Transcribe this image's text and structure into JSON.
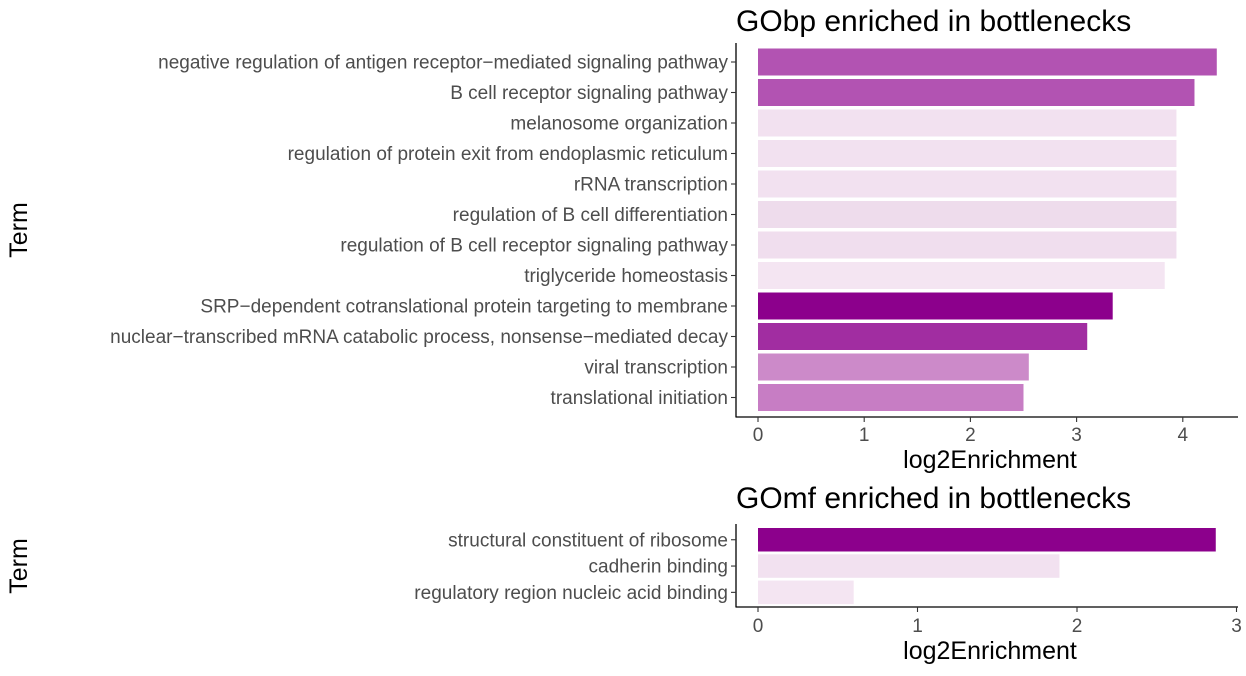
{
  "chart_data": [
    {
      "type": "bar",
      "orientation": "horizontal",
      "title": "GObp enriched in bottlenecks",
      "xlabel": "log2Enrichment",
      "ylabel": "Term",
      "xlim": [
        0,
        4.5
      ],
      "xticks": [
        0,
        1,
        2,
        3,
        4
      ],
      "grid": false,
      "legend": "none",
      "categories": [
        "negative regulation of antigen receptor−mediated signaling pathway",
        "B cell receptor signaling pathway",
        "melanosome organization",
        "regulation of protein exit from endoplasmic reticulum",
        "rRNA transcription",
        "regulation of B cell differentiation",
        "regulation of B cell receptor signaling pathway",
        "triglyceride homeostasis",
        "SRP−dependent cotranslational protein targeting to membrane",
        "nuclear−transcribed mRNA catabolic process, nonsense−mediated decay",
        "viral transcription",
        "translational initiation"
      ],
      "values": [
        4.32,
        4.11,
        3.94,
        3.94,
        3.94,
        3.94,
        3.94,
        3.83,
        3.34,
        3.1,
        2.55,
        2.5
      ],
      "colors": [
        "#b253b2",
        "#b253b2",
        "#f2e1f0",
        "#f2e1f0",
        "#f2e1f0",
        "#eedcec",
        "#f0deee",
        "#f4e5f2",
        "#8c008c",
        "#a12da1",
        "#cc8ac9",
        "#c77dc4"
      ]
    },
    {
      "type": "bar",
      "orientation": "horizontal",
      "title": "GOmf enriched in bottlenecks",
      "xlabel": "log2Enrichment",
      "ylabel": "Term",
      "xlim": [
        0,
        3
      ],
      "xticks": [
        0,
        1,
        2,
        3
      ],
      "grid": false,
      "legend": "none",
      "categories": [
        "structural constituent of ribosome",
        "cadherin binding",
        "regulatory region nucleic acid binding"
      ],
      "values": [
        2.87,
        1.89,
        0.6
      ],
      "colors": [
        "#8c008c",
        "#f2e1f0",
        "#f4e5f2"
      ]
    }
  ]
}
